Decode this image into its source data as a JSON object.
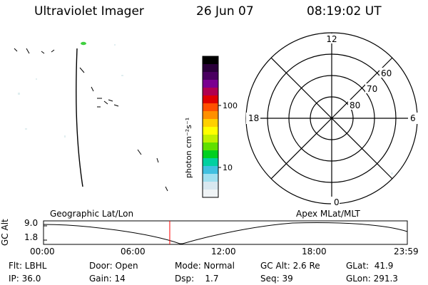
{
  "header": {
    "instrument": "Ultraviolet Imager",
    "date": "26 Jun 07",
    "time": "08:19:02 UT"
  },
  "colorbar": {
    "label": "photon cm⁻²s⁻¹",
    "ticks": [
      "100",
      "10"
    ],
    "colors": [
      "#000000",
      "#2a003a",
      "#4a0060",
      "#7a0090",
      "#b00050",
      "#e00000",
      "#ff5000",
      "#ff9000",
      "#ffd000",
      "#ffff00",
      "#c0f000",
      "#60e000",
      "#00d020",
      "#00d0a0",
      "#40c0e0",
      "#a0e0f0",
      "#d8e8f0",
      "#f0f4f6"
    ]
  },
  "polar": {
    "mlt_labels": [
      "12",
      "18",
      "6",
      "0"
    ],
    "lat_labels": [
      "60",
      "70",
      "80"
    ]
  },
  "altitude_plot": {
    "y_axis_label": "GC Alt",
    "y_ticks": [
      "9.0",
      "1.8"
    ],
    "x_ticks": [
      "00:00",
      "06:00",
      "12:00",
      "18:00",
      "23:59"
    ],
    "left_caption": "Geographic Lat/Lon",
    "right_caption": "Apex MLat/MLT",
    "current_time_fraction": 0.347,
    "marker_color": "#ff0000"
  },
  "status": {
    "flt": "Flt: LBHL",
    "ip": "IP: 36.0",
    "door": "Door: Open",
    "gain": "Gain: 14",
    "mode": "Mode: Normal",
    "dsp": "Dsp:    1.7",
    "gc_alt": "GC Alt: 2.6 Re",
    "seq": "Seq: 39",
    "glat": "GLat:  41.9",
    "glon": "GLon: 291.3"
  }
}
